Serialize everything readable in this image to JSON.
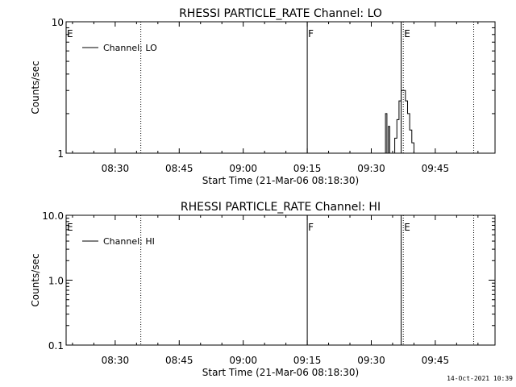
{
  "chart_data": [
    {
      "type": "line",
      "title": "RHESSI PARTICLE_RATE Channel: LO",
      "xlabel": "Start Time (21-Mar-06 08:18:30)",
      "ylabel": "Counts/sec",
      "yscale": "log",
      "ylim": [
        1,
        10
      ],
      "xlim": [
        "08:18:30",
        "09:59:00"
      ],
      "x_ticks": [
        "08:30",
        "08:45",
        "09:00",
        "09:15",
        "09:30",
        "09:45"
      ],
      "y_ticks": [
        "1",
        "10"
      ],
      "legend": {
        "position": "top-left",
        "entries": [
          "Channel: LO"
        ]
      },
      "markers": [
        {
          "time": "08:18:30",
          "label": "E",
          "style": "solid"
        },
        {
          "time": "08:36:00",
          "label": "",
          "style": "dotted"
        },
        {
          "time": "09:15:00",
          "label": "F",
          "style": "solid"
        },
        {
          "time": "09:37:00",
          "label": "",
          "style": "solid"
        },
        {
          "time": "09:37:30",
          "label": "E",
          "style": "dotted"
        },
        {
          "time": "09:54:00",
          "label": "",
          "style": "dotted"
        }
      ],
      "series": [
        {
          "name": "Channel: LO",
          "x": [
            "09:33:00",
            "09:33:20",
            "09:33:40",
            "09:34:00",
            "09:34:20",
            "09:35:00",
            "09:35:30",
            "09:36:00",
            "09:36:30",
            "09:37:00",
            "09:37:30",
            "09:38:00",
            "09:38:30",
            "09:39:00",
            "09:39:30",
            "09:40:00",
            "09:40:30"
          ],
          "y": [
            1,
            2,
            1,
            1.6,
            1,
            1,
            1.3,
            1.8,
            2.5,
            3,
            3,
            2.5,
            2,
            1.5,
            1.2,
            1,
            1
          ]
        }
      ]
    },
    {
      "type": "line",
      "title": "RHESSI PARTICLE_RATE Channel: HI",
      "xlabel": "Start Time (21-Mar-06 08:18:30)",
      "ylabel": "Counts/sec",
      "yscale": "log",
      "ylim": [
        0.1,
        10
      ],
      "xlim": [
        "08:18:30",
        "09:59:00"
      ],
      "x_ticks": [
        "08:30",
        "08:45",
        "09:00",
        "09:15",
        "09:30",
        "09:45"
      ],
      "y_ticks": [
        "0.1",
        "1.0",
        "10.0"
      ],
      "legend": {
        "position": "top-left",
        "entries": [
          "Channel: HI"
        ]
      },
      "markers": [
        {
          "time": "08:18:30",
          "label": "E",
          "style": "solid"
        },
        {
          "time": "08:36:00",
          "label": "",
          "style": "dotted"
        },
        {
          "time": "09:15:00",
          "label": "F",
          "style": "solid"
        },
        {
          "time": "09:37:00",
          "label": "",
          "style": "solid"
        },
        {
          "time": "09:37:30",
          "label": "E",
          "style": "dotted"
        },
        {
          "time": "09:54:00",
          "label": "",
          "style": "dotted"
        }
      ],
      "series": [
        {
          "name": "Channel: HI",
          "x": [],
          "y": []
        }
      ]
    }
  ],
  "timestamp": "14-Oct-2021 10:39"
}
